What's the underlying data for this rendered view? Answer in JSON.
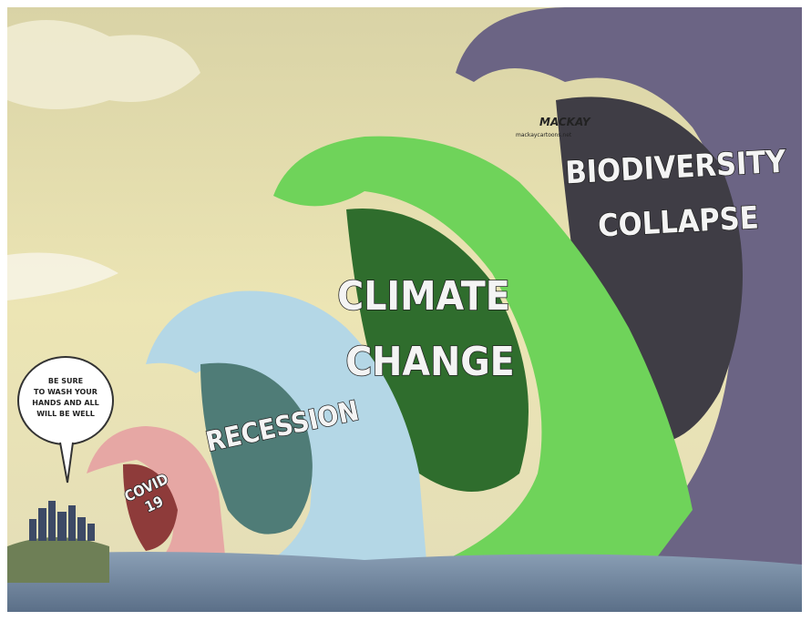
{
  "speech_bubble": {
    "lines": [
      "BE SURE",
      "TO WASH YOUR",
      "HANDS AND ALL",
      "WILL BE WELL"
    ]
  },
  "waves": [
    {
      "label_lines": [
        "COVID",
        "19"
      ]
    },
    {
      "label_lines": [
        "RECESSION"
      ]
    },
    {
      "label_lines": [
        "CLIMATE",
        "CHANGE"
      ]
    },
    {
      "label_lines": [
        "BIODIVERSITY",
        "COLLAPSE"
      ]
    }
  ],
  "signature": {
    "name": "MACKAY",
    "site": "mackaycartoons.net"
  }
}
